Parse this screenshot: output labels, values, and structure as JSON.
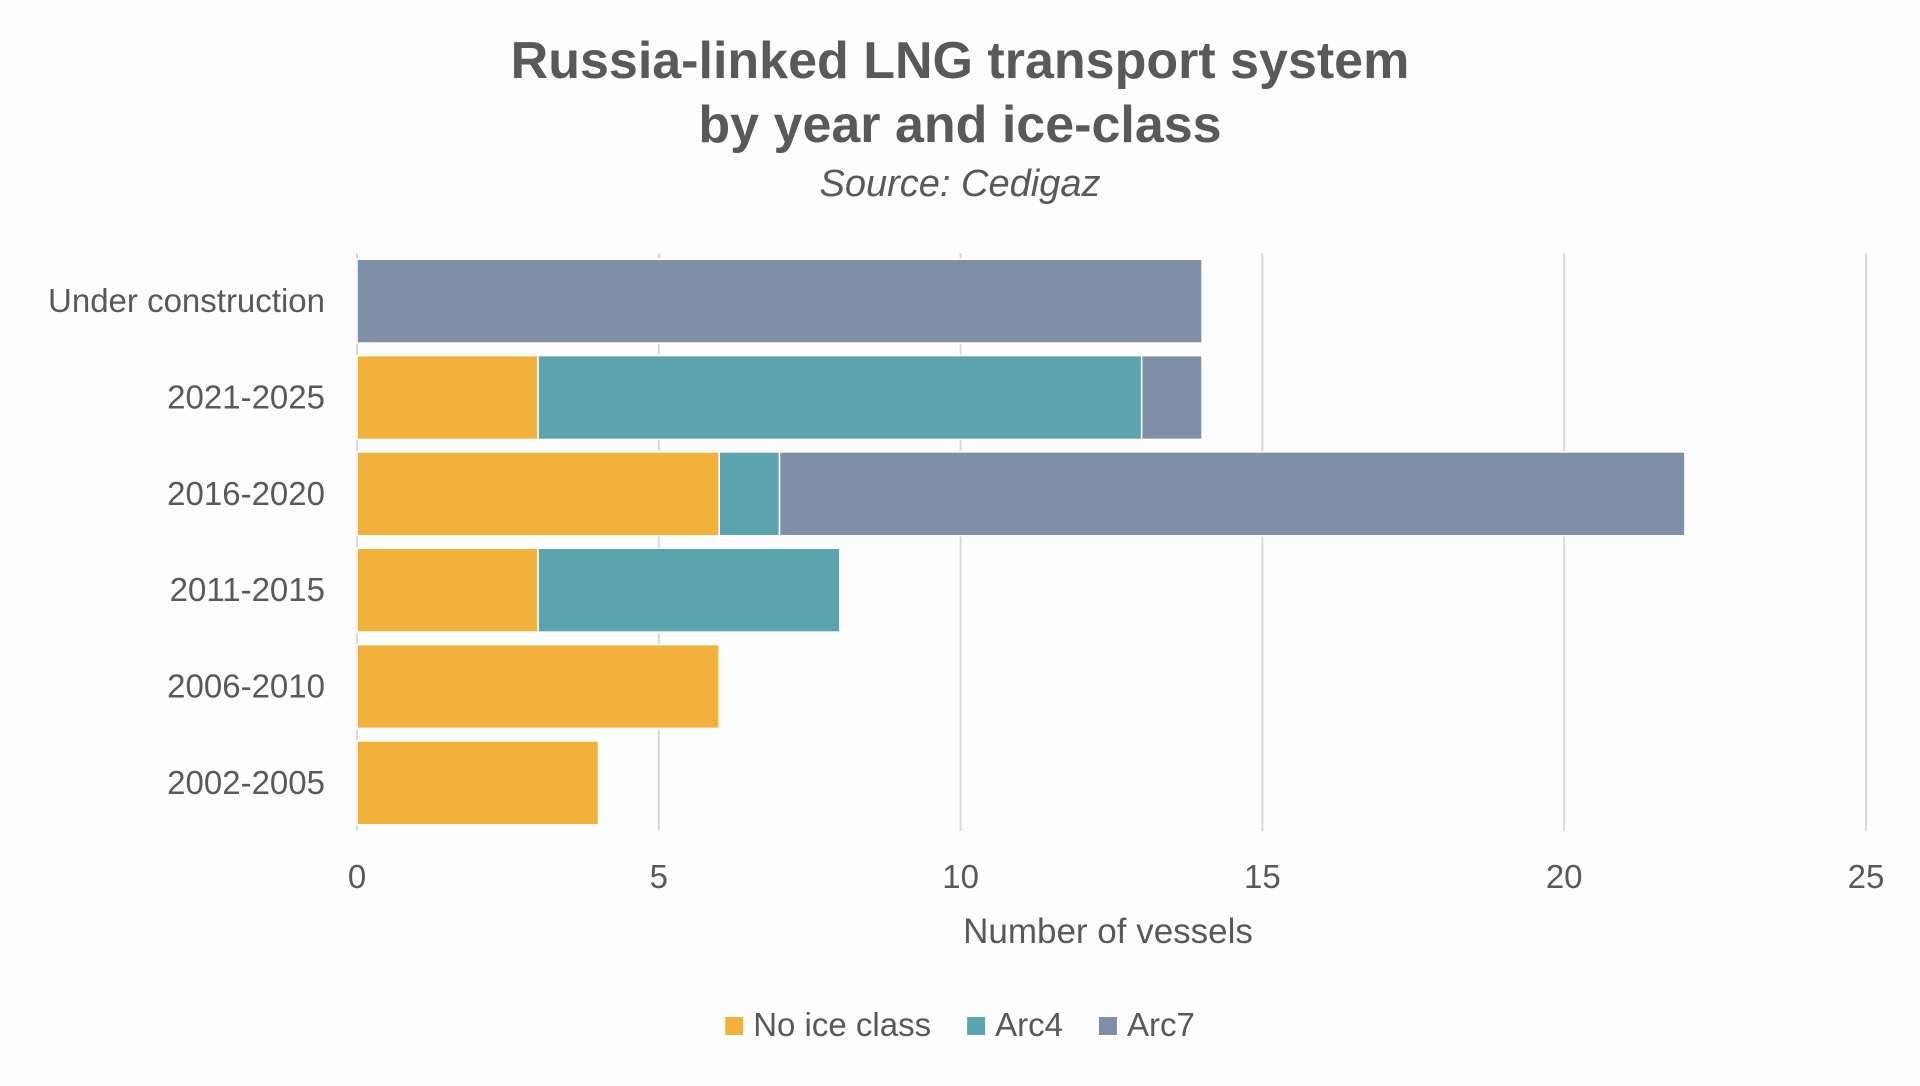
{
  "chart_data": {
    "type": "bar",
    "orientation": "horizontal",
    "stacked": true,
    "title_lines": [
      "Russia-linked LNG transport system",
      "by year and ice-class"
    ],
    "subtitle": "Source: Cedigaz",
    "xlabel": "Number of vessels",
    "ylabel": "",
    "xlim": [
      0,
      25
    ],
    "xticks": [
      0,
      5,
      10,
      15,
      20,
      25
    ],
    "grid": true,
    "legend_position": "bottom",
    "categories": [
      "Under construction",
      "2021-2025",
      "2016-2020",
      "2011-2015",
      "2006-2010",
      "2002-2005"
    ],
    "series": [
      {
        "name": "No ice class",
        "color": "#f2b13a",
        "values": [
          0,
          3,
          6,
          3,
          6,
          4
        ]
      },
      {
        "name": "Arc4",
        "color": "#5ba4ae",
        "values": [
          0,
          10,
          1,
          5,
          0,
          0
        ]
      },
      {
        "name": "Arc7",
        "color": "#7f8fa8",
        "values": [
          14,
          1,
          15,
          0,
          0,
          0
        ]
      }
    ]
  }
}
